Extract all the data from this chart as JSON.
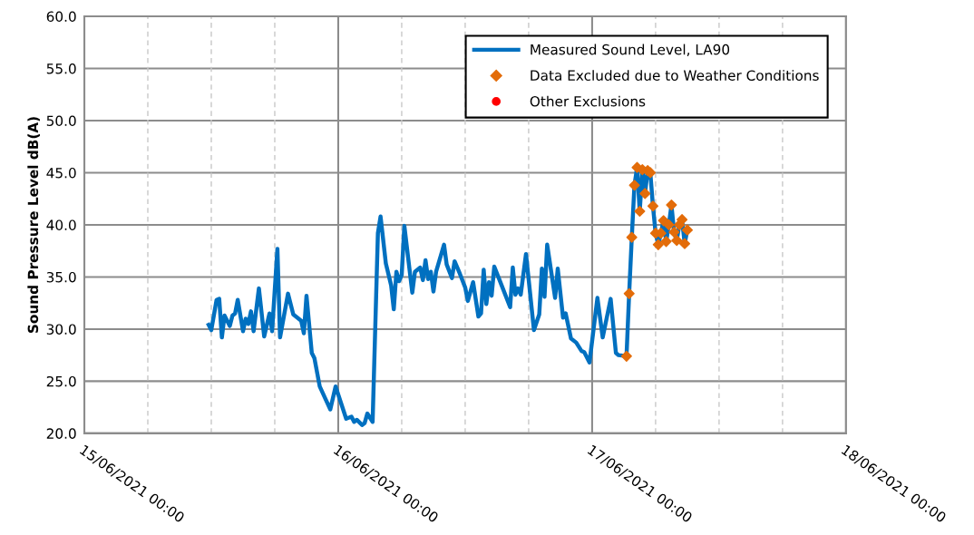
{
  "chart_data": {
    "type": "line",
    "ylabel": "Sound Pressure Level dB(A)",
    "xlim": [
      "2021-06-15T00:00",
      "2021-06-18T00:00"
    ],
    "xticks": [
      {
        "value": "2021-06-15T00:00",
        "label": "15/06/2021 00:00"
      },
      {
        "value": "2021-06-15T06:00",
        "label": null
      },
      {
        "value": "2021-06-15T12:00",
        "label": null
      },
      {
        "value": "2021-06-15T18:00",
        "label": null
      },
      {
        "value": "2021-06-16T00:00",
        "label": "16/06/2021 00:00"
      },
      {
        "value": "2021-06-16T06:00",
        "label": null
      },
      {
        "value": "2021-06-16T12:00",
        "label": null
      },
      {
        "value": "2021-06-16T18:00",
        "label": null
      },
      {
        "value": "2021-06-17T00:00",
        "label": "17/06/2021 00:00"
      },
      {
        "value": "2021-06-17T06:00",
        "label": null
      },
      {
        "value": "2021-06-17T12:00",
        "label": null
      },
      {
        "value": "2021-06-17T18:00",
        "label": null
      },
      {
        "value": "2021-06-18T00:00",
        "label": "18/06/2021 00:00"
      }
    ],
    "ylim": [
      20,
      60
    ],
    "yticks": [
      {
        "value": 20,
        "label": "20.0"
      },
      {
        "value": 25,
        "label": "25.0"
      },
      {
        "value": 30,
        "label": "30.0"
      },
      {
        "value": 35,
        "label": "35.0"
      },
      {
        "value": 40,
        "label": "40.0"
      },
      {
        "value": 45,
        "label": "45.0"
      },
      {
        "value": 50,
        "label": "50.0"
      },
      {
        "value": 55,
        "label": "55.0"
      },
      {
        "value": 60,
        "label": "60.0"
      }
    ],
    "grid": true,
    "legend": "top right",
    "series": [
      {
        "name": "Measured Sound Level, LA90",
        "color": "#0070c0",
        "marker": "none",
        "line_style": "solid",
        "x": [
          "2021-06-15T11:45",
          "2021-06-15T12:00",
          "2021-06-15T12:30",
          "2021-06-15T12:45",
          "2021-06-15T13:00",
          "2021-06-15T13:15",
          "2021-06-15T13:45",
          "2021-06-15T14:00",
          "2021-06-15T14:15",
          "2021-06-15T14:30",
          "2021-06-15T15:00",
          "2021-06-15T15:15",
          "2021-06-15T15:30",
          "2021-06-15T15:45",
          "2021-06-15T16:00",
          "2021-06-15T16:30",
          "2021-06-15T17:00",
          "2021-06-15T17:30",
          "2021-06-15T17:45",
          "2021-06-15T18:15",
          "2021-06-15T18:30",
          "2021-06-15T19:15",
          "2021-06-15T19:45",
          "2021-06-15T20:30",
          "2021-06-15T20:45",
          "2021-06-15T21:00",
          "2021-06-15T21:30",
          "2021-06-15T21:45",
          "2021-06-15T22:15",
          "2021-06-15T22:45",
          "2021-06-15T23:15",
          "2021-06-15T23:45",
          "2021-06-16T00:45",
          "2021-06-16T01:15",
          "2021-06-16T01:30",
          "2021-06-16T01:45",
          "2021-06-16T02:15",
          "2021-06-16T02:30",
          "2021-06-16T02:45",
          "2021-06-16T03:15",
          "2021-06-16T03:45",
          "2021-06-16T04:00",
          "2021-06-16T04:30",
          "2021-06-16T05:00",
          "2021-06-16T05:15",
          "2021-06-16T05:30",
          "2021-06-16T05:45",
          "2021-06-16T06:00",
          "2021-06-16T06:15",
          "2021-06-16T07:00",
          "2021-06-16T07:15",
          "2021-06-16T07:45",
          "2021-06-16T08:00",
          "2021-06-16T08:15",
          "2021-06-16T08:30",
          "2021-06-16T08:45",
          "2021-06-16T09:00",
          "2021-06-16T09:15",
          "2021-06-16T10:00",
          "2021-06-16T10:15",
          "2021-06-16T10:45",
          "2021-06-16T11:00",
          "2021-06-16T11:30",
          "2021-06-16T12:00",
          "2021-06-16T12:15",
          "2021-06-16T12:45",
          "2021-06-16T13:15",
          "2021-06-16T13:30",
          "2021-06-16T13:45",
          "2021-06-16T14:00",
          "2021-06-16T14:15",
          "2021-06-16T14:30",
          "2021-06-16T14:45",
          "2021-06-16T15:15",
          "2021-06-16T16:15",
          "2021-06-16T16:30",
          "2021-06-16T16:45",
          "2021-06-16T17:00",
          "2021-06-16T17:15",
          "2021-06-16T17:45",
          "2021-06-16T18:30",
          "2021-06-16T19:00",
          "2021-06-16T19:15",
          "2021-06-16T19:30",
          "2021-06-16T19:45",
          "2021-06-16T20:30",
          "2021-06-16T20:45",
          "2021-06-16T21:15",
          "2021-06-16T21:30",
          "2021-06-16T22:00",
          "2021-06-16T22:30",
          "2021-06-16T23:00",
          "2021-06-16T23:15",
          "2021-06-16T23:45",
          "2021-06-17T00:30",
          "2021-06-17T01:00",
          "2021-06-17T01:45",
          "2021-06-17T02:15",
          "2021-06-17T02:30",
          "2021-06-17T03:15",
          "2021-06-17T03:30",
          "2021-06-17T03:45",
          "2021-06-17T04:00",
          "2021-06-17T04:15",
          "2021-06-17T04:30",
          "2021-06-17T04:45",
          "2021-06-17T05:00",
          "2021-06-17T05:15",
          "2021-06-17T05:30",
          "2021-06-17T05:45",
          "2021-06-17T06:00",
          "2021-06-17T06:15",
          "2021-06-17T06:30",
          "2021-06-17T06:45",
          "2021-06-17T07:00",
          "2021-06-17T07:15",
          "2021-06-17T07:30",
          "2021-06-17T07:45",
          "2021-06-17T08:00",
          "2021-06-17T08:15",
          "2021-06-17T08:30",
          "2021-06-17T08:45",
          "2021-06-17T09:00"
        ],
        "values": [
          30.4,
          29.9,
          32.8,
          32.9,
          29.2,
          31.3,
          30.3,
          31.3,
          31.5,
          32.8,
          29.8,
          31.0,
          30.5,
          31.7,
          29.8,
          33.9,
          29.3,
          31.5,
          29.8,
          37.7,
          29.2,
          33.4,
          31.4,
          30.8,
          29.6,
          33.2,
          27.7,
          27.2,
          24.5,
          23.4,
          22.3,
          24.5,
          21.4,
          21.6,
          21.1,
          21.3,
          20.8,
          21.0,
          21.9,
          21.1,
          39.2,
          40.8,
          36.3,
          34.2,
          31.9,
          35.5,
          34.6,
          35.2,
          39.9,
          33.5,
          35.5,
          35.9,
          34.7,
          36.6,
          34.8,
          35.5,
          33.6,
          35.5,
          38.1,
          36.2,
          34.9,
          36.5,
          35.3,
          34.0,
          32.7,
          34.5,
          31.2,
          31.5,
          35.7,
          32.4,
          34.5,
          33.2,
          36.0,
          34.7,
          32.1,
          35.9,
          33.3,
          33.9,
          33.3,
          37.2,
          29.9,
          31.4,
          35.8,
          33.1,
          38.1,
          33.0,
          35.8,
          31.1,
          31.5,
          29.1,
          28.7,
          27.9,
          27.8,
          26.8,
          33.0,
          29.2,
          32.9,
          27.7,
          27.5,
          27.4,
          33.4,
          38.8,
          43.8,
          45.5,
          41.3,
          45.3,
          43.0,
          45.2,
          45.0,
          41.8,
          39.2,
          38.1,
          39.2,
          40.4,
          38.4,
          40.0,
          41.9,
          39.3,
          38.5,
          40.0,
          40.5,
          38.2,
          39.5
        ]
      },
      {
        "name": "Data Excluded due to Weather Conditions",
        "type": "scatter",
        "color": "#e36c09",
        "marker": "diamond",
        "x": [
          "2021-06-17T03:15",
          "2021-06-17T03:30",
          "2021-06-17T03:45",
          "2021-06-17T04:00",
          "2021-06-17T04:15",
          "2021-06-17T04:30",
          "2021-06-17T04:45",
          "2021-06-17T05:00",
          "2021-06-17T05:15",
          "2021-06-17T05:30",
          "2021-06-17T05:45",
          "2021-06-17T06:00",
          "2021-06-17T06:15",
          "2021-06-17T06:30",
          "2021-06-17T06:45",
          "2021-06-17T07:00",
          "2021-06-17T07:15",
          "2021-06-17T07:30",
          "2021-06-17T07:45",
          "2021-06-17T08:00",
          "2021-06-17T08:15",
          "2021-06-17T08:30",
          "2021-06-17T08:45",
          "2021-06-17T09:00"
        ],
        "values": [
          27.4,
          33.4,
          38.8,
          43.8,
          45.5,
          41.3,
          45.3,
          43.0,
          45.2,
          45.0,
          41.8,
          39.2,
          38.1,
          39.2,
          40.4,
          38.4,
          40.0,
          41.9,
          39.3,
          38.5,
          40.0,
          40.5,
          38.2,
          39.5
        ]
      },
      {
        "name": "Other Exclusions",
        "type": "scatter",
        "color": "#ff0000",
        "marker": "circle"
      }
    ]
  }
}
